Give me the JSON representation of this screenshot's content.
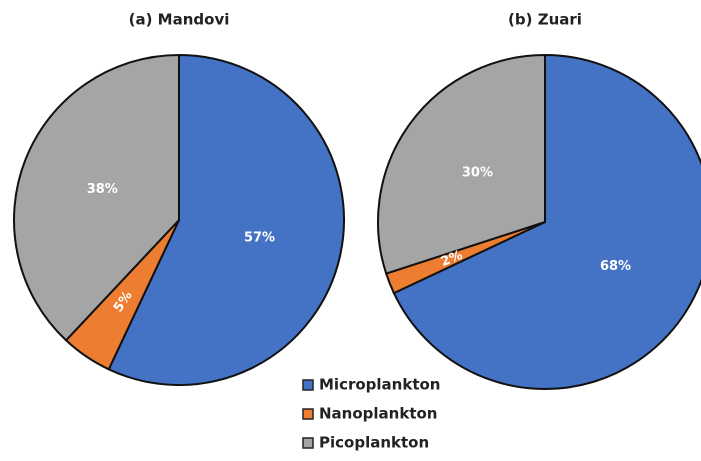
{
  "chart_data": [
    {
      "type": "pie",
      "title": "(a) Mandovi",
      "categories": [
        "Microplankton",
        "Nanoplankton",
        "Picoplankton"
      ],
      "values": [
        57,
        5,
        38
      ],
      "value_labels": [
        "57%",
        "5%",
        "38%"
      ],
      "colors": [
        "#4472c4",
        "#ed7d31",
        "#a5a5a5"
      ]
    },
    {
      "type": "pie",
      "title": "(b) Zuari",
      "categories": [
        "Microplankton",
        "Nanoplankton",
        "Picoplankton"
      ],
      "values": [
        68,
        2,
        30
      ],
      "value_labels": [
        "68%",
        "2%",
        "30%"
      ],
      "colors": [
        "#4472c4",
        "#ed7d31",
        "#a5a5a5"
      ]
    }
  ]
}
